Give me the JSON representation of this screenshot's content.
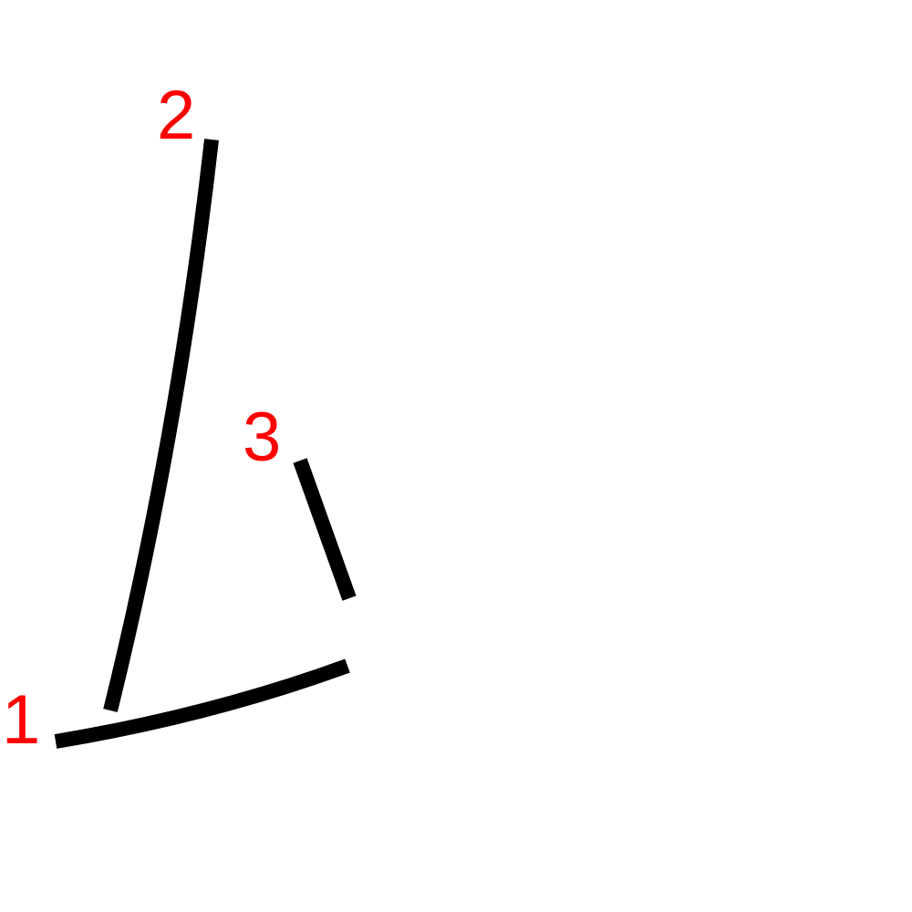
{
  "colors": {
    "stroke": "#000000",
    "label": "#ff0000",
    "background": "#ffffff"
  },
  "strokes": [
    {
      "order": "1"
    },
    {
      "order": "2"
    },
    {
      "order": "3"
    }
  ]
}
